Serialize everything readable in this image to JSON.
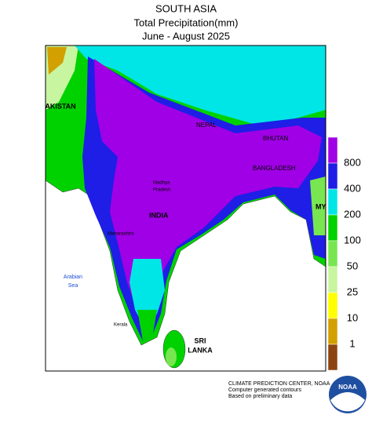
{
  "header": {
    "region": "SOUTH ASIA",
    "title": "Total Precipitation(mm)",
    "period": "June - August 2025"
  },
  "map_labels": {
    "pakistan": "PAKISTAN",
    "nepal": "NEPAL",
    "bhutan": "BHUTAN",
    "bangladesh": "BANGLADESH",
    "india": "INDIA",
    "myanmar": "MY",
    "arabian_sea": [
      "Arabian",
      "Sea"
    ],
    "sri_lanka": [
      "SRI",
      "LANKA"
    ],
    "kerala": "Kerala",
    "maharashtra": "Maharashtra",
    "madhya_pradesh": [
      "Madhya",
      "Pradesh"
    ]
  },
  "legend": {
    "values": [
      800,
      400,
      200,
      100,
      50,
      25,
      10,
      1
    ],
    "colors": [
      "#a000e6",
      "#1e1ee6",
      "#00e6e6",
      "#00d200",
      "#78e650",
      "#c8f5a0",
      "#ffff00",
      "#d2a000",
      "#8b4513"
    ]
  },
  "footer": {
    "lines": [
      "CLIMATE PREDICTION CENTER, NOAA",
      "Computer generated contours",
      "Based on preliminary data"
    ],
    "logo": "NOAA"
  }
}
